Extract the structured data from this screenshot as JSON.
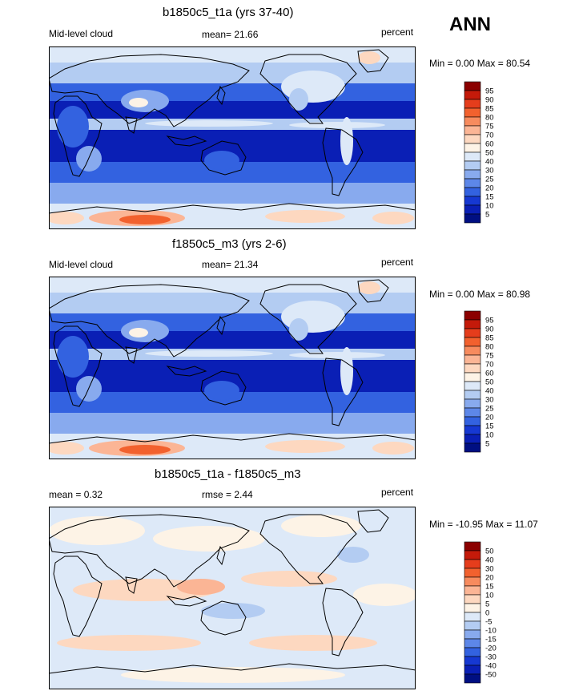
{
  "season": "ANN",
  "panels": [
    {
      "title": "b1850c5_t1a (yrs 37-40)",
      "left_label": "Mid-level cloud",
      "center_label": "mean=  21.66",
      "right_label": "percent",
      "minmax_label": "Min =   0.00 Max =  80.54",
      "type": "field"
    },
    {
      "title": "f1850c5_m3 (yrs 2-6)",
      "left_label": "Mid-level cloud",
      "center_label": "mean=  21.34",
      "right_label": "percent",
      "minmax_label": "Min =   0.00 Max =  80.98",
      "type": "field"
    },
    {
      "title": "b1850c5_t1a - f1850c5_m3",
      "left_label": "mean =   0.32",
      "center_label": "rmse =   2.44",
      "right_label": "percent",
      "minmax_label": "Min = -10.95 Max =  11.07",
      "type": "difference"
    }
  ],
  "field_colorbar": {
    "levels": [
      "95",
      "90",
      "85",
      "80",
      "75",
      "70",
      "60",
      "50",
      "40",
      "30",
      "25",
      "20",
      "15",
      "10",
      "5"
    ],
    "colors": [
      "#8b0000",
      "#c41a0a",
      "#e53d1c",
      "#f2612e",
      "#f78b5e",
      "#fbb595",
      "#fdd8c0",
      "#fdf3e6",
      "#dde9f8",
      "#b3ccf2",
      "#88aaee",
      "#5d87e8",
      "#3362e0",
      "#1638d2",
      "#0a1fb5",
      "#000f82"
    ]
  },
  "diff_colorbar": {
    "levels": [
      "50",
      "40",
      "30",
      "20",
      "15",
      "10",
      "5",
      "0",
      "-5",
      "-10",
      "-15",
      "-20",
      "-30",
      "-40",
      "-50"
    ],
    "colors": [
      "#8b0000",
      "#c41a0a",
      "#e53d1c",
      "#f2612e",
      "#f78b5e",
      "#fbb595",
      "#fdd8c0",
      "#fdf3e6",
      "#dde9f8",
      "#b3ccf2",
      "#88aaee",
      "#5d87e8",
      "#3362e0",
      "#1638d2",
      "#0a1fb5",
      "#000f82"
    ]
  }
}
